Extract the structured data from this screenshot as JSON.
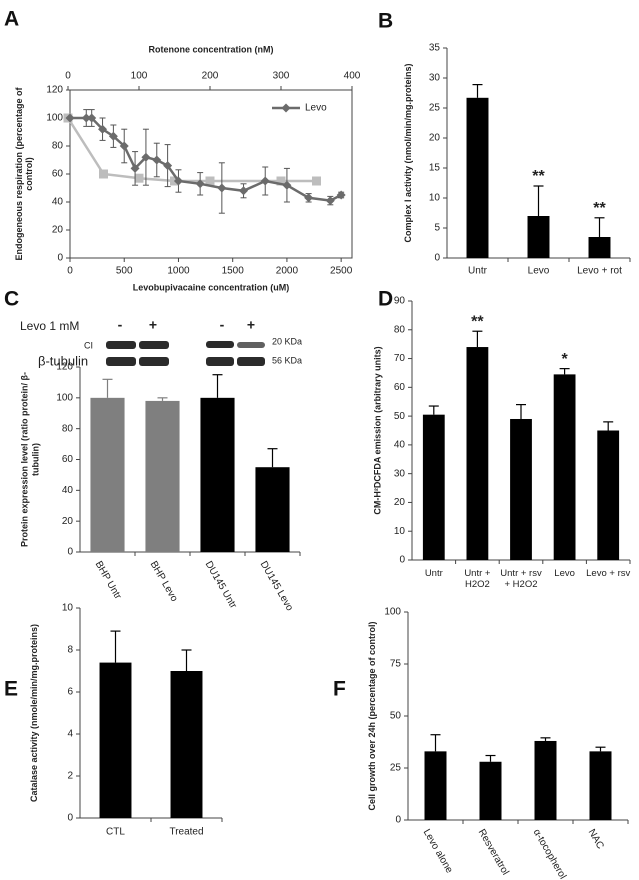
{
  "chart_data": [
    {
      "type": "line",
      "panel": "A",
      "x_label": "Levobupivacaine  concentration (uM)",
      "x2_label": "Rotenone concentration  (nM)",
      "y_label": "Endogeneous  respiration (percentage of control)",
      "xlim": [
        0,
        2600
      ],
      "xticks": [
        0,
        500,
        1000,
        1500,
        2000,
        2500
      ],
      "x2lim": [
        0,
        400
      ],
      "x2ticks": [
        0,
        100,
        200,
        300,
        400
      ],
      "ylim": [
        0,
        120
      ],
      "yticks": [
        0,
        20,
        40,
        60,
        80,
        100,
        120
      ],
      "legend": "upper right",
      "series": [
        {
          "name": "Levo",
          "color": "#6b6b6b",
          "marker": "diamond",
          "x": [
            0,
            150,
            200,
            300,
            400,
            500,
            600,
            700,
            800,
            900,
            1000,
            1200,
            1400,
            1600,
            1800,
            2000,
            2200,
            2400,
            2500
          ],
          "values": [
            100,
            100,
            100,
            92,
            87,
            80,
            64,
            72,
            70,
            66,
            55,
            53,
            50,
            48,
            55,
            52,
            43,
            41,
            45
          ],
          "errors": [
            0,
            6,
            6,
            8,
            8,
            12,
            12,
            20,
            12,
            15,
            8,
            8,
            18,
            5,
            10,
            12,
            3,
            3,
            2
          ]
        },
        {
          "color": "#bdbdbd",
          "marker": "square",
          "axis": "x2",
          "x": [
            0,
            50,
            100,
            150,
            200,
            300,
            350
          ],
          "values": [
            100,
            60,
            57,
            55,
            55,
            55,
            55
          ]
        }
      ]
    },
    {
      "type": "bar",
      "panel": "B",
      "y_label": "Complex I activity (nmol/min/mg.proteins)",
      "categories": [
        "Untr",
        "Levo",
        "Levo + rot"
      ],
      "values": [
        26.7,
        7,
        3.5
      ],
      "errors": [
        2.2,
        5,
        3.2
      ],
      "color": "#000000",
      "ylim": [
        0,
        35
      ],
      "yticks": [
        0,
        5,
        10,
        15,
        20,
        25,
        30,
        35
      ],
      "annotations": [
        {
          "category": "Levo",
          "text": "**"
        },
        {
          "category": "Levo + rot",
          "text": "**"
        }
      ]
    },
    {
      "type": "bar",
      "panel": "C",
      "y_label": "Protein expression level (ratio protein/ β-tubulin)",
      "blot": {
        "treatment": "Levo 1 mM",
        "lanes": [
          "-",
          "+",
          "-",
          "+"
        ],
        "rows": [
          "CI",
          "β-tubulin"
        ],
        "sizes": [
          "20 KDa",
          "56 KDa"
        ]
      },
      "categories": [
        "BHP Untr",
        "BHP Levo",
        "DU145 Untr",
        "DU145 Levo"
      ],
      "values": [
        100,
        98,
        100,
        55
      ],
      "errors": [
        12,
        2,
        15,
        12
      ],
      "colors": [
        "#7f7f7f",
        "#7f7f7f",
        "#000000",
        "#000000"
      ],
      "ylim": [
        0,
        120
      ],
      "yticks": [
        0,
        20,
        40,
        60,
        80,
        100,
        120
      ]
    },
    {
      "type": "bar",
      "panel": "D",
      "y_label": "CM-H²DCFDA  emission (arbitrary units)",
      "categories": [
        "Untr",
        "Untr + H2O2",
        "Untr + rsv + H2O2",
        "Levo",
        "Levo + rsv"
      ],
      "values": [
        50.5,
        74,
        49,
        64.5,
        45
      ],
      "errors": [
        3,
        5.5,
        5,
        2,
        3
      ],
      "color": "#000000",
      "ylim": [
        0,
        90
      ],
      "yticks": [
        0,
        10,
        20,
        30,
        40,
        50,
        60,
        70,
        80,
        90
      ],
      "annotations": [
        {
          "category": "Untr + H2O2",
          "text": "**"
        },
        {
          "category": "Levo",
          "text": "*"
        }
      ]
    },
    {
      "type": "bar",
      "panel": "E",
      "y_label": "Catalase activity (nmole/min/mg.proteins)",
      "categories": [
        "CTL",
        "Treated"
      ],
      "values": [
        7.4,
        7.0
      ],
      "errors": [
        1.5,
        1
      ],
      "color": "#000000",
      "ylim": [
        0,
        10
      ],
      "yticks": [
        0,
        2,
        4,
        6,
        8,
        10
      ]
    },
    {
      "type": "bar",
      "panel": "F",
      "y_label": "Cell growth over 24h (percentage of control)",
      "categories": [
        "Levo alone",
        "Resveratrol",
        "α-tocopherol",
        "NAC"
      ],
      "values": [
        33,
        28,
        38,
        33
      ],
      "errors": [
        8,
        3,
        1.5,
        2
      ],
      "color": "#000000",
      "ylim": [
        0,
        100
      ],
      "yticks": [
        0,
        25,
        50,
        75,
        100
      ]
    }
  ]
}
